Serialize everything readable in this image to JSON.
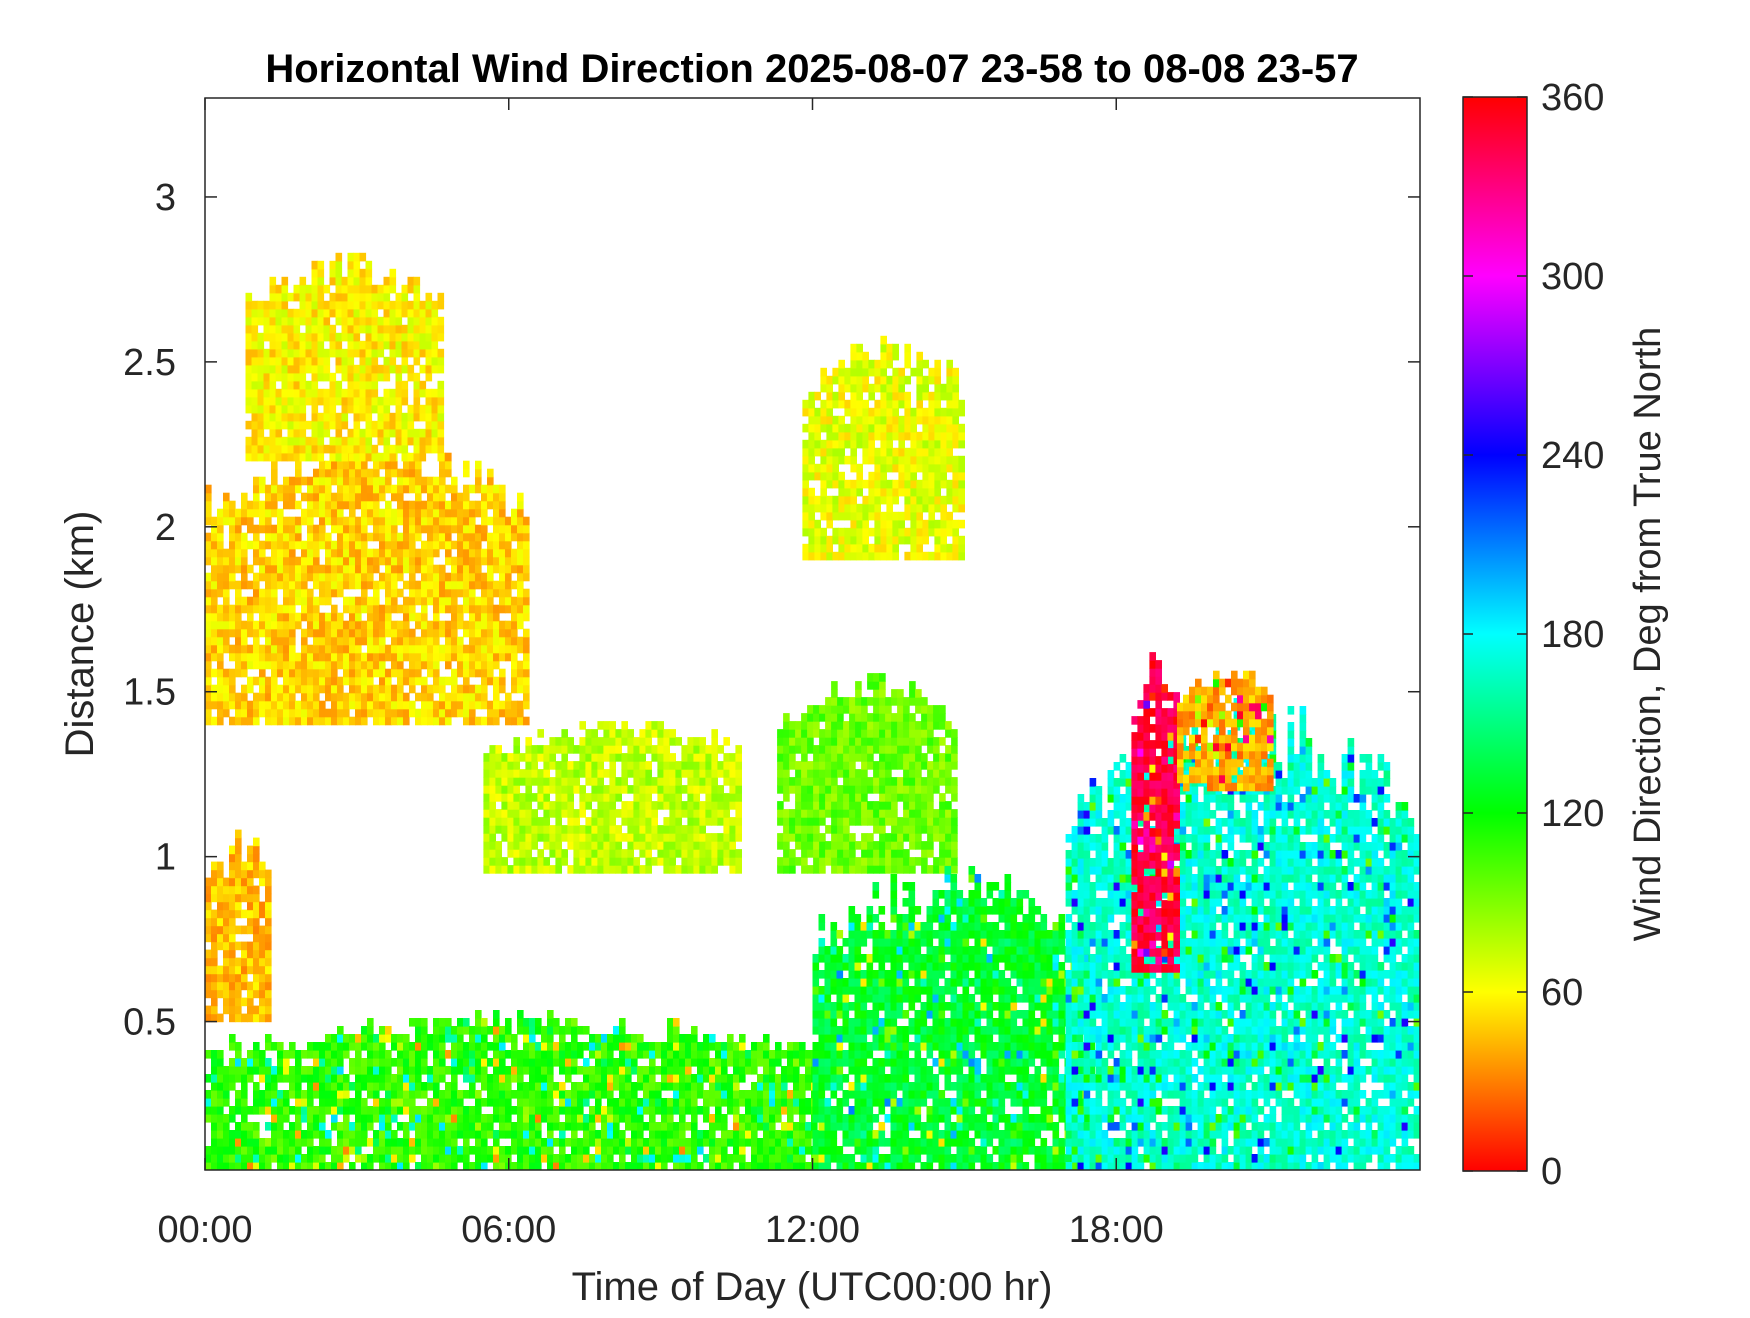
{
  "chart_data": {
    "type": "heatmap",
    "title": "Horizontal Wind Direction 2025-08-07 23-58 to 08-08 23-57",
    "xlabel": "Time of Day (UTC00:00 hr)",
    "ylabel": "Distance (km)",
    "x_ticks": [
      "00:00",
      "06:00",
      "12:00",
      "18:00"
    ],
    "x_tick_hours": [
      0,
      6,
      12,
      18
    ],
    "xlim_hours": [
      0,
      24
    ],
    "y_ticks": [
      "0.5",
      "1",
      "1.5",
      "2",
      "2.5",
      "3"
    ],
    "y_tick_values": [
      0.5,
      1,
      1.5,
      2,
      2.5,
      3
    ],
    "ylim_km": [
      0.05,
      3.3
    ],
    "colorbar": {
      "label": "Wind Direction, Deg from True North",
      "ticks": [
        "0",
        "60",
        "120",
        "180",
        "240",
        "300",
        "360"
      ],
      "tick_values": [
        0,
        60,
        120,
        180,
        240,
        300,
        360
      ],
      "range": [
        0,
        360
      ],
      "colormap": "hsv",
      "stops": [
        "#ff0000",
        "#ffff00",
        "#00ff00",
        "#00ffff",
        "#0000ff",
        "#ff00ff",
        "#ff0000"
      ]
    },
    "regions": [
      {
        "t_start": 0.0,
        "t_end": 6.3,
        "alt_low": 1.4,
        "alt_high": 2.3,
        "direction_deg": 50
      },
      {
        "t_start": 0.0,
        "t_end": 1.3,
        "alt_low": 0.5,
        "alt_high": 1.1,
        "direction_deg": 45
      },
      {
        "t_start": 0.8,
        "t_end": 4.6,
        "alt_low": 2.2,
        "alt_high": 2.85,
        "direction_deg": 58
      },
      {
        "t_start": 5.5,
        "t_end": 10.5,
        "alt_low": 0.95,
        "alt_high": 1.45,
        "direction_deg": 75
      },
      {
        "t_start": 11.3,
        "t_end": 14.8,
        "alt_low": 0.95,
        "alt_high": 1.58,
        "direction_deg": 95
      },
      {
        "t_start": 11.8,
        "t_end": 15.0,
        "alt_low": 1.9,
        "alt_high": 2.6,
        "direction_deg": 65
      },
      {
        "t_start": 0.0,
        "t_end": 12.0,
        "alt_low": 0.05,
        "alt_high": 0.55,
        "direction_deg": 110
      },
      {
        "t_start": 12.0,
        "t_end": 17.5,
        "alt_low": 0.05,
        "alt_high": 1.0,
        "direction_deg": 130
      },
      {
        "t_start": 17.0,
        "t_end": 24.0,
        "alt_low": 0.05,
        "alt_high": 1.5,
        "direction_deg": 170
      },
      {
        "t_start": 18.3,
        "t_end": 19.2,
        "alt_low": 0.65,
        "alt_high": 1.7,
        "direction_deg": 345
      },
      {
        "t_start": 19.2,
        "t_end": 21.0,
        "alt_low": 1.2,
        "alt_high": 1.6,
        "direction_deg": 40
      }
    ]
  }
}
